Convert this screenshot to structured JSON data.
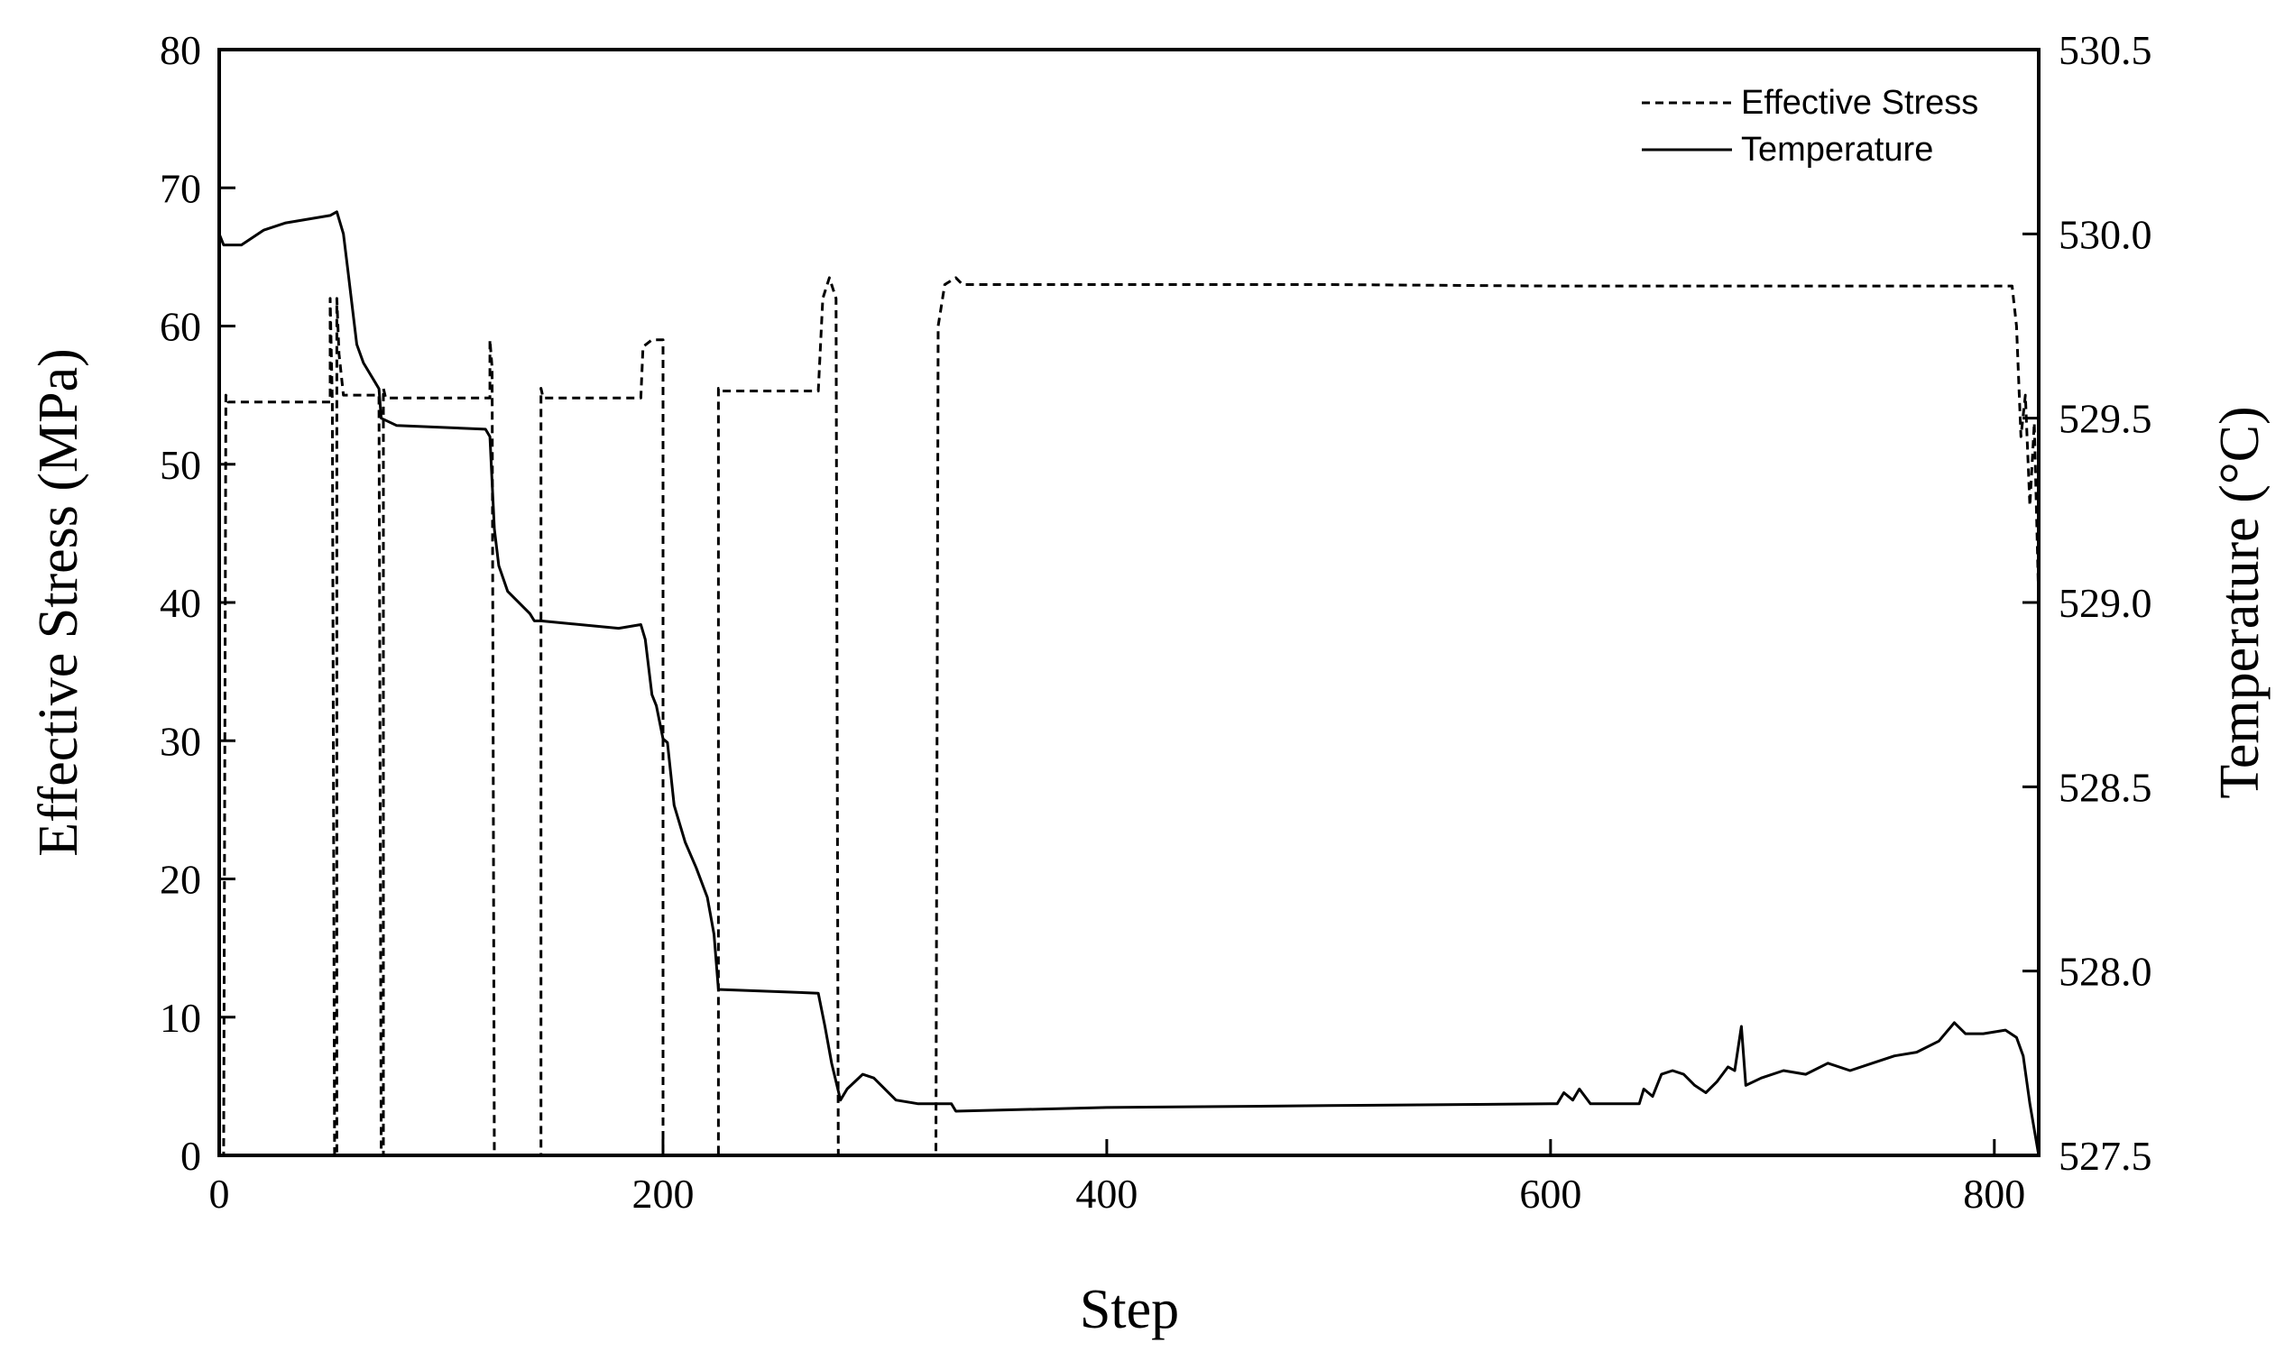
{
  "chart_data": {
    "type": "line",
    "xlabel": "Step",
    "ylabel_left": "Effective Stress (MPa)",
    "ylabel_right": "Temperature (°C)",
    "xlim": [
      0,
      820
    ],
    "ylim_left": [
      0,
      80
    ],
    "ylim_right": [
      527.5,
      530.5
    ],
    "x_ticks": [
      0,
      200,
      400,
      600,
      800
    ],
    "y_ticks_left": [
      0,
      10,
      20,
      30,
      40,
      50,
      60,
      70,
      80
    ],
    "y_ticks_right": [
      "527.5",
      "528.0",
      "528.5",
      "529.0",
      "529.5",
      "530.0",
      "530.5"
    ],
    "grid": false,
    "legend_position": "top-right",
    "series": [
      {
        "name": "Effective Stress",
        "axis": "left",
        "style": "dashed",
        "color": "#000000",
        "points": [
          [
            0,
            0
          ],
          [
            2,
            0
          ],
          [
            3,
            55
          ],
          [
            4,
            54.5
          ],
          [
            50,
            54.5
          ],
          [
            50,
            62
          ],
          [
            51,
            54.5
          ],
          [
            52,
            0
          ],
          [
            53,
            0
          ],
          [
            53,
            62
          ],
          [
            54,
            58
          ],
          [
            56,
            55
          ],
          [
            72,
            55
          ],
          [
            73,
            0
          ],
          [
            74,
            0
          ],
          [
            74,
            55.5
          ],
          [
            75,
            54.8
          ],
          [
            122,
            54.8
          ],
          [
            122,
            59
          ],
          [
            123,
            57
          ],
          [
            124,
            0
          ],
          [
            145,
            0
          ],
          [
            145,
            55.5
          ],
          [
            146,
            54.8
          ],
          [
            190,
            54.8
          ],
          [
            191,
            58.5
          ],
          [
            195,
            59
          ],
          [
            200,
            59
          ],
          [
            200,
            0
          ],
          [
            225,
            0
          ],
          [
            225,
            55.5
          ],
          [
            226,
            55.3
          ],
          [
            270,
            55.3
          ],
          [
            272,
            62
          ],
          [
            275,
            63.5
          ],
          [
            278,
            62
          ],
          [
            279,
            0
          ],
          [
            323,
            0
          ],
          [
            324,
            60
          ],
          [
            327,
            63
          ],
          [
            332,
            63.5
          ],
          [
            335,
            63
          ],
          [
            400,
            63
          ],
          [
            500,
            63
          ],
          [
            600,
            62.9
          ],
          [
            700,
            62.9
          ],
          [
            808,
            62.9
          ],
          [
            810,
            60
          ],
          [
            812,
            52
          ],
          [
            814,
            55
          ],
          [
            816,
            47
          ],
          [
            818,
            53
          ],
          [
            820,
            40
          ],
          [
            821,
            57
          ]
        ]
      },
      {
        "name": "Temperature",
        "axis": "right",
        "style": "solid",
        "color": "#000000",
        "points": [
          [
            0,
            530.0
          ],
          [
            2,
            529.97
          ],
          [
            10,
            529.97
          ],
          [
            20,
            530.01
          ],
          [
            30,
            530.03
          ],
          [
            40,
            530.04
          ],
          [
            50,
            530.05
          ],
          [
            53,
            530.06
          ],
          [
            56,
            530.0
          ],
          [
            58,
            529.9
          ],
          [
            60,
            529.8
          ],
          [
            62,
            529.7
          ],
          [
            65,
            529.65
          ],
          [
            70,
            529.6
          ],
          [
            72,
            529.58
          ],
          [
            73,
            529.5
          ],
          [
            80,
            529.48
          ],
          [
            120,
            529.47
          ],
          [
            122,
            529.45
          ],
          [
            124,
            529.2
          ],
          [
            126,
            529.1
          ],
          [
            130,
            529.03
          ],
          [
            140,
            528.97
          ],
          [
            142,
            528.95
          ],
          [
            145,
            528.95
          ],
          [
            180,
            528.93
          ],
          [
            190,
            528.94
          ],
          [
            192,
            528.9
          ],
          [
            195,
            528.75
          ],
          [
            197,
            528.72
          ],
          [
            200,
            528.63
          ],
          [
            202,
            528.62
          ],
          [
            205,
            528.45
          ],
          [
            210,
            528.35
          ],
          [
            215,
            528.28
          ],
          [
            220,
            528.2
          ],
          [
            223,
            528.1
          ],
          [
            225,
            527.95
          ],
          [
            226,
            527.95
          ],
          [
            270,
            527.94
          ],
          [
            273,
            527.85
          ],
          [
            276,
            527.75
          ],
          [
            280,
            527.65
          ],
          [
            283,
            527.68
          ],
          [
            290,
            527.72
          ],
          [
            295,
            527.71
          ],
          [
            305,
            527.65
          ],
          [
            315,
            527.64
          ],
          [
            323,
            527.64
          ],
          [
            330,
            527.64
          ],
          [
            332,
            527.62
          ],
          [
            400,
            527.63
          ],
          [
            500,
            527.635
          ],
          [
            600,
            527.64
          ],
          [
            603,
            527.64
          ],
          [
            606,
            527.67
          ],
          [
            610,
            527.65
          ],
          [
            613,
            527.68
          ],
          [
            618,
            527.64
          ],
          [
            625,
            527.64
          ],
          [
            640,
            527.64
          ],
          [
            642,
            527.68
          ],
          [
            646,
            527.66
          ],
          [
            650,
            527.72
          ],
          [
            655,
            527.73
          ],
          [
            660,
            527.72
          ],
          [
            665,
            527.69
          ],
          [
            670,
            527.67
          ],
          [
            675,
            527.7
          ],
          [
            680,
            527.74
          ],
          [
            683,
            527.73
          ],
          [
            686,
            527.85
          ],
          [
            688,
            527.69
          ],
          [
            695,
            527.71
          ],
          [
            705,
            527.73
          ],
          [
            715,
            527.72
          ],
          [
            725,
            527.75
          ],
          [
            735,
            527.73
          ],
          [
            745,
            527.75
          ],
          [
            755,
            527.77
          ],
          [
            765,
            527.78
          ],
          [
            775,
            527.81
          ],
          [
            782,
            527.86
          ],
          [
            787,
            527.83
          ],
          [
            795,
            527.83
          ],
          [
            805,
            527.84
          ],
          [
            810,
            527.82
          ],
          [
            813,
            527.77
          ],
          [
            816,
            527.64
          ],
          [
            820,
            527.5
          ]
        ]
      }
    ]
  }
}
